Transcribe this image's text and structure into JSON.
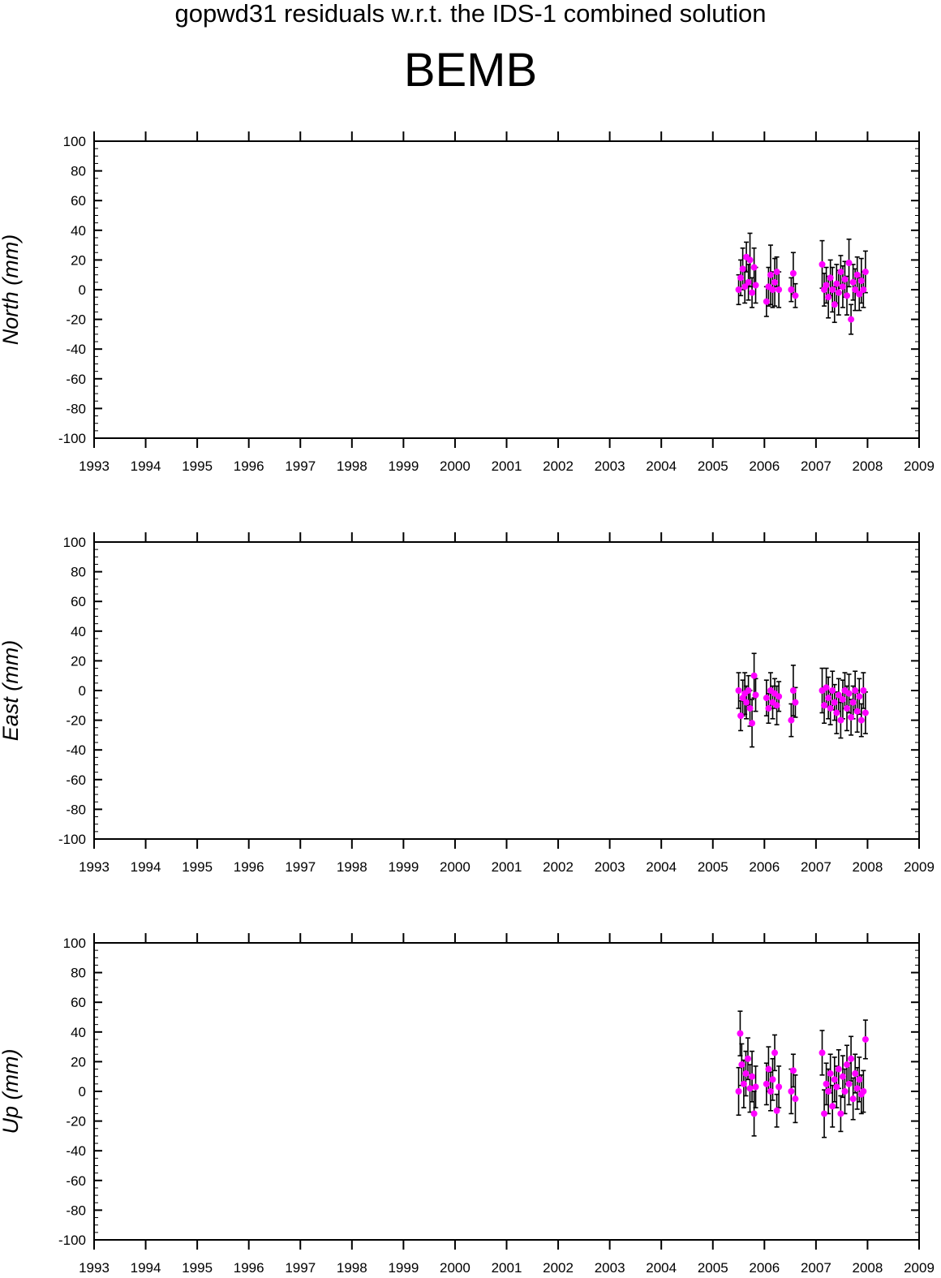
{
  "header": {
    "suptitle": "gopwd31 residuals w.r.t. the IDS-1 combined solution",
    "station": "BEMB"
  },
  "colors": {
    "point": "#ff00ff",
    "errorbar": "#000000",
    "axis": "#000000"
  },
  "chart_data": [
    {
      "type": "scatter",
      "component": "north",
      "ylabel": "North (mm)",
      "ylim": [
        -100,
        100
      ],
      "yticks": [
        100,
        80,
        60,
        40,
        20,
        0,
        -20,
        -40,
        -60,
        -80,
        -100
      ],
      "xlim": [
        1993,
        2009
      ],
      "xticks": [
        1993,
        1994,
        1995,
        1996,
        1997,
        1998,
        1999,
        2000,
        2001,
        2002,
        2003,
        2004,
        2005,
        2006,
        2007,
        2008,
        2009
      ],
      "grid": false,
      "points": [
        {
          "x": 2005.5,
          "y": 0,
          "err": 10
        },
        {
          "x": 2005.54,
          "y": 8,
          "err": 12
        },
        {
          "x": 2005.58,
          "y": 14,
          "err": 14
        },
        {
          "x": 2005.62,
          "y": 2,
          "err": 11
        },
        {
          "x": 2005.65,
          "y": 22,
          "err": 10
        },
        {
          "x": 2005.69,
          "y": 5,
          "err": 12
        },
        {
          "x": 2005.72,
          "y": 20,
          "err": 18
        },
        {
          "x": 2005.76,
          "y": -2,
          "err": 10
        },
        {
          "x": 2005.8,
          "y": 15,
          "err": 13
        },
        {
          "x": 2005.83,
          "y": 3,
          "err": 12
        },
        {
          "x": 2006.04,
          "y": -8,
          "err": 10
        },
        {
          "x": 2006.08,
          "y": 2,
          "err": 13
        },
        {
          "x": 2006.12,
          "y": 10,
          "err": 20
        },
        {
          "x": 2006.16,
          "y": 0,
          "err": 12
        },
        {
          "x": 2006.2,
          "y": 5,
          "err": 16
        },
        {
          "x": 2006.24,
          "y": 12,
          "err": 10
        },
        {
          "x": 2006.28,
          "y": 0,
          "err": 12
        },
        {
          "x": 2006.52,
          "y": 0,
          "err": 8
        },
        {
          "x": 2006.56,
          "y": 11,
          "err": 14
        },
        {
          "x": 2006.6,
          "y": -4,
          "err": 8
        },
        {
          "x": 2007.12,
          "y": 17,
          "err": 16
        },
        {
          "x": 2007.16,
          "y": 0,
          "err": 11
        },
        {
          "x": 2007.2,
          "y": 3,
          "err": 12
        },
        {
          "x": 2007.24,
          "y": -5,
          "err": 14
        },
        {
          "x": 2007.28,
          "y": 8,
          "err": 12
        },
        {
          "x": 2007.32,
          "y": 0,
          "err": 15
        },
        {
          "x": 2007.36,
          "y": -10,
          "err": 12
        },
        {
          "x": 2007.4,
          "y": 4,
          "err": 13
        },
        {
          "x": 2007.44,
          "y": -2,
          "err": 15
        },
        {
          "x": 2007.48,
          "y": 12,
          "err": 11
        },
        {
          "x": 2007.52,
          "y": 2,
          "err": 14
        },
        {
          "x": 2007.56,
          "y": 7,
          "err": 12
        },
        {
          "x": 2007.6,
          "y": -4,
          "err": 13
        },
        {
          "x": 2007.64,
          "y": 18,
          "err": 16
        },
        {
          "x": 2007.68,
          "y": -20,
          "err": 10
        },
        {
          "x": 2007.72,
          "y": 5,
          "err": 12
        },
        {
          "x": 2007.76,
          "y": 0,
          "err": 14
        },
        {
          "x": 2007.8,
          "y": 10,
          "err": 12
        },
        {
          "x": 2007.84,
          "y": -3,
          "err": 11
        },
        {
          "x": 2007.88,
          "y": 6,
          "err": 15
        },
        {
          "x": 2007.92,
          "y": 0,
          "err": 12
        },
        {
          "x": 2007.96,
          "y": 12,
          "err": 14
        }
      ]
    },
    {
      "type": "scatter",
      "component": "east",
      "ylabel": "East (mm)",
      "ylim": [
        -100,
        100
      ],
      "yticks": [
        100,
        80,
        60,
        40,
        20,
        0,
        -20,
        -40,
        -60,
        -80,
        -100
      ],
      "xlim": [
        1993,
        2009
      ],
      "xticks": [
        1993,
        1994,
        1995,
        1996,
        1997,
        1998,
        1999,
        2000,
        2001,
        2002,
        2003,
        2004,
        2005,
        2006,
        2007,
        2008,
        2009
      ],
      "grid": false,
      "points": [
        {
          "x": 2005.5,
          "y": 0,
          "err": 12
        },
        {
          "x": 2005.54,
          "y": -17,
          "err": 10
        },
        {
          "x": 2005.58,
          "y": -5,
          "err": 12
        },
        {
          "x": 2005.62,
          "y": -2,
          "err": 14
        },
        {
          "x": 2005.65,
          "y": -8,
          "err": 11
        },
        {
          "x": 2005.69,
          "y": 0,
          "err": 10
        },
        {
          "x": 2005.72,
          "y": -12,
          "err": 12
        },
        {
          "x": 2005.76,
          "y": -22,
          "err": 16
        },
        {
          "x": 2005.8,
          "y": 10,
          "err": 15
        },
        {
          "x": 2005.83,
          "y": -3,
          "err": 11
        },
        {
          "x": 2006.04,
          "y": -5,
          "err": 12
        },
        {
          "x": 2006.08,
          "y": -12,
          "err": 10
        },
        {
          "x": 2006.12,
          "y": 0,
          "err": 12
        },
        {
          "x": 2006.16,
          "y": -8,
          "err": 11
        },
        {
          "x": 2006.2,
          "y": -2,
          "err": 10
        },
        {
          "x": 2006.24,
          "y": -10,
          "err": 13
        },
        {
          "x": 2006.28,
          "y": -4,
          "err": 10
        },
        {
          "x": 2006.52,
          "y": -20,
          "err": 11
        },
        {
          "x": 2006.56,
          "y": 0,
          "err": 17
        },
        {
          "x": 2006.6,
          "y": -8,
          "err": 10
        },
        {
          "x": 2007.12,
          "y": 0,
          "err": 15
        },
        {
          "x": 2007.16,
          "y": -10,
          "err": 12
        },
        {
          "x": 2007.2,
          "y": 2,
          "err": 13
        },
        {
          "x": 2007.24,
          "y": -5,
          "err": 14
        },
        {
          "x": 2007.28,
          "y": -12,
          "err": 11
        },
        {
          "x": 2007.32,
          "y": 0,
          "err": 13
        },
        {
          "x": 2007.36,
          "y": -8,
          "err": 12
        },
        {
          "x": 2007.4,
          "y": -15,
          "err": 14
        },
        {
          "x": 2007.44,
          "y": -3,
          "err": 11
        },
        {
          "x": 2007.48,
          "y": -20,
          "err": 12
        },
        {
          "x": 2007.52,
          "y": -6,
          "err": 13
        },
        {
          "x": 2007.56,
          "y": 0,
          "err": 12
        },
        {
          "x": 2007.6,
          "y": -12,
          "err": 15
        },
        {
          "x": 2007.64,
          "y": -2,
          "err": 13
        },
        {
          "x": 2007.68,
          "y": -18,
          "err": 12
        },
        {
          "x": 2007.72,
          "y": -8,
          "err": 11
        },
        {
          "x": 2007.76,
          "y": 0,
          "err": 13
        },
        {
          "x": 2007.8,
          "y": -14,
          "err": 14
        },
        {
          "x": 2007.84,
          "y": -4,
          "err": 12
        },
        {
          "x": 2007.88,
          "y": -20,
          "err": 11
        },
        {
          "x": 2007.92,
          "y": 0,
          "err": 12
        },
        {
          "x": 2007.96,
          "y": -15,
          "err": 14
        }
      ]
    },
    {
      "type": "scatter",
      "component": "up",
      "ylabel": "Up (mm)",
      "ylim": [
        -100,
        100
      ],
      "yticks": [
        100,
        80,
        60,
        40,
        20,
        0,
        -20,
        -40,
        -60,
        -80,
        -100
      ],
      "xlim": [
        1993,
        2009
      ],
      "xticks": [
        1993,
        1994,
        1995,
        1996,
        1997,
        1998,
        1999,
        2000,
        2001,
        2002,
        2003,
        2004,
        2005,
        2006,
        2007,
        2008,
        2009
      ],
      "grid": false,
      "points": [
        {
          "x": 2005.5,
          "y": 0,
          "err": 16
        },
        {
          "x": 2005.53,
          "y": 39,
          "err": 15
        },
        {
          "x": 2005.56,
          "y": 18,
          "err": 14
        },
        {
          "x": 2005.6,
          "y": 5,
          "err": 16
        },
        {
          "x": 2005.64,
          "y": 12,
          "err": 15
        },
        {
          "x": 2005.68,
          "y": 22,
          "err": 14
        },
        {
          "x": 2005.72,
          "y": 2,
          "err": 16
        },
        {
          "x": 2005.76,
          "y": 10,
          "err": 17
        },
        {
          "x": 2005.8,
          "y": -15,
          "err": 15
        },
        {
          "x": 2005.83,
          "y": 3,
          "err": 14
        },
        {
          "x": 2006.04,
          "y": 5,
          "err": 14
        },
        {
          "x": 2006.08,
          "y": 15,
          "err": 15
        },
        {
          "x": 2006.12,
          "y": 0,
          "err": 13
        },
        {
          "x": 2006.16,
          "y": 8,
          "err": 14
        },
        {
          "x": 2006.2,
          "y": 26,
          "err": 12
        },
        {
          "x": 2006.24,
          "y": -13,
          "err": 11
        },
        {
          "x": 2006.28,
          "y": 3,
          "err": 14
        },
        {
          "x": 2006.52,
          "y": 0,
          "err": 15
        },
        {
          "x": 2006.56,
          "y": 14,
          "err": 11
        },
        {
          "x": 2006.6,
          "y": -5,
          "err": 16
        },
        {
          "x": 2007.12,
          "y": 26,
          "err": 15
        },
        {
          "x": 2007.16,
          "y": -15,
          "err": 16
        },
        {
          "x": 2007.2,
          "y": 5,
          "err": 14
        },
        {
          "x": 2007.24,
          "y": 0,
          "err": 15
        },
        {
          "x": 2007.28,
          "y": 12,
          "err": 13
        },
        {
          "x": 2007.32,
          "y": -10,
          "err": 14
        },
        {
          "x": 2007.36,
          "y": 8,
          "err": 15
        },
        {
          "x": 2007.4,
          "y": 3,
          "err": 14
        },
        {
          "x": 2007.44,
          "y": 15,
          "err": 13
        },
        {
          "x": 2007.48,
          "y": -15,
          "err": 12
        },
        {
          "x": 2007.52,
          "y": 10,
          "err": 14
        },
        {
          "x": 2007.56,
          "y": 0,
          "err": 15
        },
        {
          "x": 2007.6,
          "y": 18,
          "err": 13
        },
        {
          "x": 2007.64,
          "y": 5,
          "err": 14
        },
        {
          "x": 2007.68,
          "y": 22,
          "err": 15
        },
        {
          "x": 2007.72,
          "y": -5,
          "err": 14
        },
        {
          "x": 2007.76,
          "y": 12,
          "err": 13
        },
        {
          "x": 2007.8,
          "y": 2,
          "err": 14
        },
        {
          "x": 2007.84,
          "y": 8,
          "err": 15
        },
        {
          "x": 2007.88,
          "y": -2,
          "err": 13
        },
        {
          "x": 2007.92,
          "y": 0,
          "err": 14
        },
        {
          "x": 2007.96,
          "y": 35,
          "err": 13
        }
      ]
    }
  ]
}
